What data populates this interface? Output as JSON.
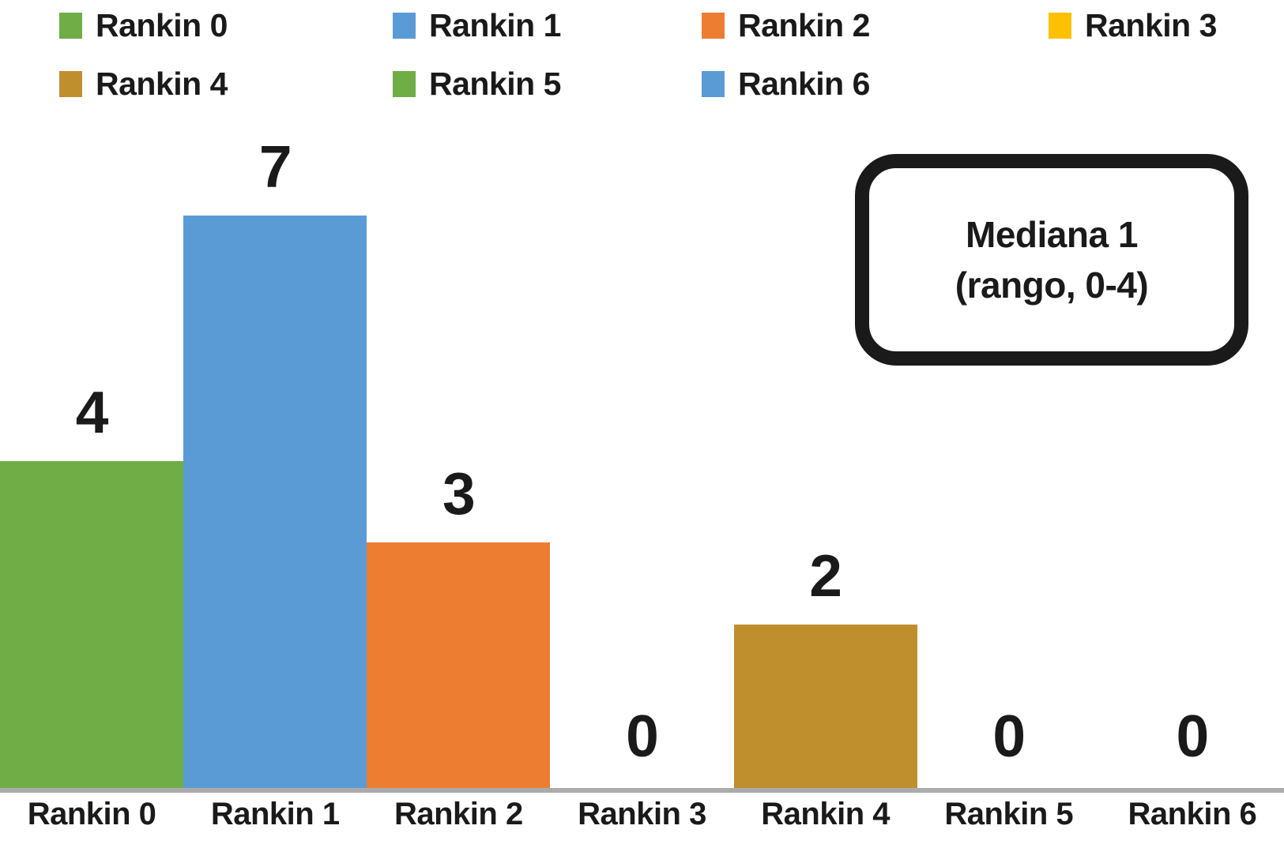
{
  "chart_data": {
    "type": "bar",
    "title": "",
    "xlabel": "",
    "ylabel": "",
    "categories": [
      "Rankin 0",
      "Rankin 1",
      "Rankin 2",
      "Rankin 3",
      "Rankin 4",
      "Rankin 5",
      "Rankin 6"
    ],
    "values": [
      4,
      7,
      3,
      0,
      2,
      0,
      0
    ],
    "data_labels": [
      "4",
      "7",
      "3",
      "0",
      "2",
      "0",
      "0"
    ],
    "bar_colors": [
      "#70AD47",
      "#5B9BD5",
      "#ED7D31",
      "#FFC000",
      "#BF8F2E",
      "#70AD47",
      "#5B9BD5"
    ],
    "ylim": [
      0,
      7.5
    ],
    "grid": false,
    "axis_line_color": "#ABABAB",
    "legend": {
      "position": "top",
      "entries": [
        {
          "label": "Rankin 0",
          "color": "#70AD47"
        },
        {
          "label": "Rankin 1",
          "color": "#5B9BD5"
        },
        {
          "label": "Rankin 2",
          "color": "#ED7D31"
        },
        {
          "label": "Rankin 3",
          "color": "#FFC000"
        },
        {
          "label": "Rankin 4",
          "color": "#BF8F2E"
        },
        {
          "label": "Rankin 5",
          "color": "#70AD47"
        },
        {
          "label": "Rankin 6",
          "color": "#5B9BD5"
        }
      ]
    },
    "annotation": {
      "line1": "Mediana 1",
      "line2": "(rango, 0-4)"
    }
  }
}
